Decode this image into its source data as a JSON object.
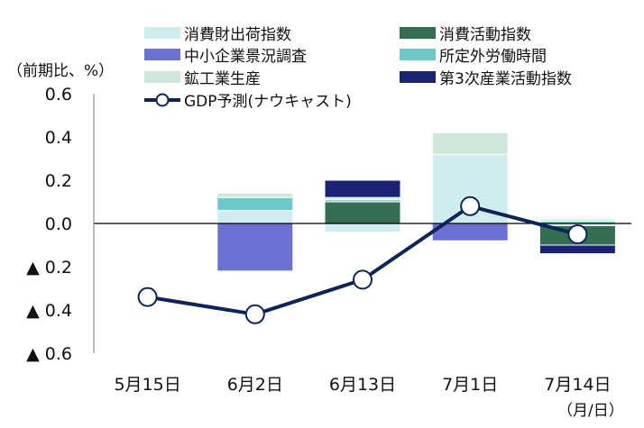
{
  "chart_data": {
    "type": "bar",
    "stacked": true,
    "ylabel": "（前期比、%）",
    "xlabel": "（月/日）",
    "categories": [
      "5月15日",
      "6月2日",
      "6月13日",
      "7月1日",
      "7月14日"
    ],
    "ylim": [
      -0.6,
      0.6
    ],
    "yticks": [
      {
        "value": 0.6,
        "label": "0.6"
      },
      {
        "value": 0.4,
        "label": "0.4"
      },
      {
        "value": 0.2,
        "label": "0.2"
      },
      {
        "value": 0.0,
        "label": "0.0"
      },
      {
        "value": -0.2,
        "label": "▲ 0.2"
      },
      {
        "value": -0.4,
        "label": "▲ 0.4"
      },
      {
        "value": -0.6,
        "label": "▲ 0.6"
      }
    ],
    "series": [
      {
        "name": "消費財出荷指数",
        "color": "#cfecee",
        "values": [
          0,
          0.06,
          -0.04,
          0.32,
          -0.01
        ]
      },
      {
        "name": "消費活動指数",
        "color": "#336e52",
        "values": [
          0,
          0,
          0.1,
          0,
          -0.09
        ]
      },
      {
        "name": "中小企業景況調査",
        "color": "#6a71d3",
        "values": [
          0,
          -0.22,
          0,
          -0.08,
          0
        ]
      },
      {
        "name": "所定外労働時間",
        "color": "#6dc9c7",
        "values": [
          0,
          0.06,
          0.01,
          0,
          0.01
        ]
      },
      {
        "name": "鉱工業生産",
        "color": "#cfe6dc",
        "values": [
          0,
          0.02,
          0.01,
          0.1,
          0.01
        ]
      },
      {
        "name": "第3次産業活動指数",
        "color": "#1c2373",
        "values": [
          0,
          0,
          0.08,
          0,
          -0.04
        ]
      }
    ],
    "line": {
      "name": "GDP予測(ナウキャスト)",
      "color": "#0e2456",
      "values": [
        -0.34,
        -0.42,
        -0.26,
        0.08,
        -0.05
      ]
    },
    "legend_position": "top"
  }
}
